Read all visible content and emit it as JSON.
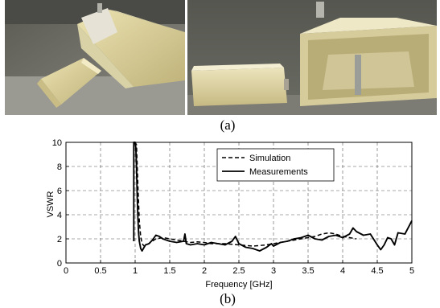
{
  "figure": {
    "panel_a_label": "(a)",
    "panel_b_label": "(b)"
  },
  "chart_data": {
    "type": "line",
    "title": "",
    "xlabel": "Frequency [GHz]",
    "ylabel": "VSWR",
    "xlim": [
      0,
      5
    ],
    "ylim": [
      0,
      10
    ],
    "xticks": [
      0,
      0.5,
      1,
      1.5,
      2,
      2.5,
      3,
      3.5,
      4,
      4.5,
      5
    ],
    "yticks": [
      0,
      2,
      4,
      6,
      8,
      10
    ],
    "grid": true,
    "grid_style": "dashed",
    "legend_position": "top-right",
    "series": [
      {
        "name": "Simulation",
        "style": "dashed",
        "color": "#000000",
        "x": [
          0.99,
          1.0,
          1.02,
          1.04,
          1.06,
          1.08,
          1.1,
          1.13,
          1.17,
          1.22,
          1.3,
          1.4,
          1.5,
          1.6,
          1.7,
          1.8,
          1.9,
          2.0,
          2.1,
          2.2,
          2.3,
          2.4,
          2.5,
          2.6,
          2.7,
          2.8,
          2.9,
          3.0,
          3.1,
          3.2,
          3.3,
          3.4,
          3.5,
          3.6,
          3.7,
          3.8,
          3.9,
          4.0,
          4.1,
          4.2
        ],
        "y": [
          10,
          10,
          9.8,
          6.5,
          3.5,
          2.2,
          1.6,
          1.4,
          1.5,
          1.7,
          2.0,
          2.1,
          2.0,
          1.9,
          1.8,
          1.7,
          1.75,
          1.7,
          1.6,
          1.6,
          1.6,
          1.55,
          1.5,
          1.45,
          1.4,
          1.45,
          1.5,
          1.6,
          1.7,
          1.8,
          1.9,
          2.0,
          2.1,
          2.2,
          2.4,
          2.5,
          2.4,
          2.2,
          2.1,
          2.0
        ]
      },
      {
        "name": "Measurements",
        "style": "solid",
        "color": "#000000",
        "x": [
          0.98,
          0.98,
          0.99,
          1.0,
          1.01,
          1.02,
          1.03,
          1.04,
          1.05,
          1.06,
          1.08,
          1.1,
          1.12,
          1.15,
          1.2,
          1.25,
          1.3,
          1.35,
          1.4,
          1.5,
          1.6,
          1.7,
          1.72,
          1.74,
          1.8,
          1.9,
          2.0,
          2.1,
          2.2,
          2.3,
          2.4,
          2.45,
          2.5,
          2.6,
          2.7,
          2.8,
          2.9,
          2.97,
          3.0,
          3.1,
          3.2,
          3.3,
          3.4,
          3.5,
          3.6,
          3.7,
          3.8,
          3.9,
          4.0,
          4.1,
          4.15,
          4.2,
          4.3,
          4.4,
          4.5,
          4.55,
          4.6,
          4.65,
          4.7,
          4.75,
          4.8,
          4.9,
          5.0
        ],
        "y": [
          1.8,
          10,
          10,
          10,
          9.5,
          8.0,
          5.5,
          3.8,
          2.5,
          1.8,
          1.2,
          1.0,
          1.2,
          1.5,
          1.6,
          1.9,
          2.3,
          2.2,
          2.0,
          1.8,
          1.7,
          1.8,
          2.4,
          1.6,
          1.5,
          1.6,
          1.5,
          1.7,
          1.6,
          1.5,
          1.8,
          2.2,
          1.6,
          1.3,
          1.2,
          1.0,
          1.3,
          1.6,
          1.4,
          1.7,
          1.8,
          2.0,
          2.1,
          2.3,
          2.0,
          1.9,
          2.2,
          2.3,
          2.1,
          2.4,
          2.9,
          2.6,
          2.3,
          2.4,
          1.5,
          1.1,
          1.5,
          2.1,
          2.0,
          1.5,
          2.5,
          2.4,
          3.5
        ]
      }
    ]
  }
}
